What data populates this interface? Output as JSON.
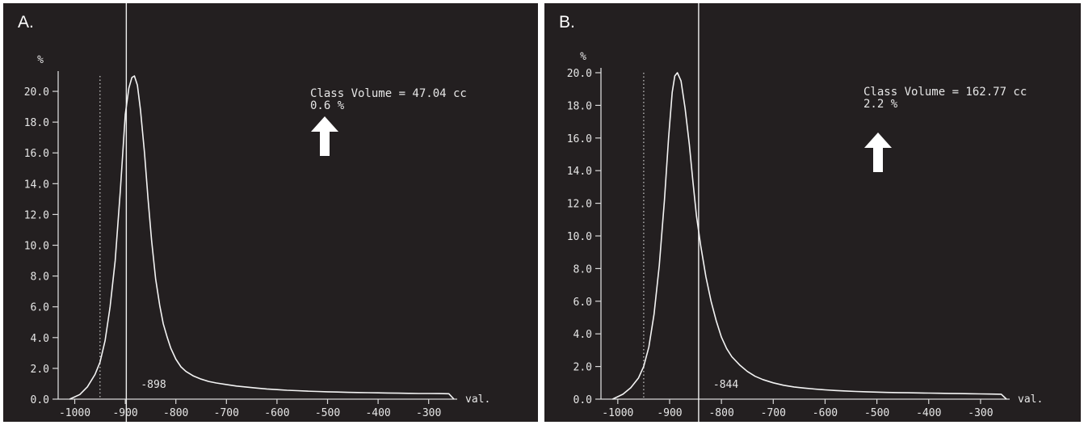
{
  "chart_data": [
    {
      "type": "line",
      "panel_label": "A.",
      "ylabel": "%",
      "xlabel": "val.",
      "xlim": [
        -1020,
        -250
      ],
      "ylim": [
        0,
        21
      ],
      "x_ticks": [
        -1000,
        -900,
        -800,
        -700,
        -600,
        -500,
        -400,
        -300
      ],
      "x_tick_labels": [
        "-1000",
        "-900",
        "-800",
        "-700",
        "-600",
        "-500",
        "-400",
        "-300"
      ],
      "y_ticks": [
        0,
        2,
        4,
        6,
        8,
        10,
        12,
        14,
        16,
        18,
        20
      ],
      "y_tick_labels": [
        "0.0",
        "2.0",
        "4.0",
        "6.0",
        "8.0",
        "10.0",
        "12.0",
        "14.0",
        "16.0",
        "18.0",
        "20.0"
      ],
      "threshold_line": -950,
      "cursor_line": -898,
      "cursor_label": "-898",
      "annotation": {
        "line1": "Class Volume = 47.04 cc",
        "line2": "0.6 %",
        "arrow": "up-arrow"
      },
      "series": [
        {
          "x": [
            -1010,
            -990,
            -975,
            -960,
            -950,
            -940,
            -930,
            -920,
            -910,
            -900,
            -893,
            -887,
            -882,
            -876,
            -870,
            -862,
            -855,
            -848,
            -840,
            -832,
            -825,
            -817,
            -810,
            -800,
            -790,
            -780,
            -765,
            -750,
            -735,
            -720,
            -700,
            -680,
            -660,
            -640,
            -620,
            -600,
            -580,
            -560,
            -540,
            -520,
            -500,
            -480,
            -460,
            -440,
            -420,
            -400,
            -380,
            -360,
            -340,
            -320,
            -300,
            -280,
            -260,
            -250
          ],
          "y": [
            0.0,
            0.3,
            0.8,
            1.6,
            2.4,
            3.8,
            6.0,
            9.0,
            13.5,
            18.5,
            20.2,
            20.9,
            21.0,
            20.4,
            18.8,
            16.0,
            13.0,
            10.3,
            7.8,
            6.1,
            4.9,
            4.0,
            3.3,
            2.6,
            2.1,
            1.8,
            1.5,
            1.3,
            1.15,
            1.05,
            0.95,
            0.85,
            0.78,
            0.72,
            0.66,
            0.62,
            0.58,
            0.55,
            0.52,
            0.5,
            0.48,
            0.46,
            0.44,
            0.43,
            0.42,
            0.41,
            0.4,
            0.39,
            0.38,
            0.37,
            0.37,
            0.36,
            0.35,
            0.0
          ]
        }
      ]
    },
    {
      "type": "line",
      "panel_label": "B.",
      "ylabel": "%",
      "xlabel": "val.",
      "xlim": [
        -1020,
        -250
      ],
      "ylim": [
        0,
        20
      ],
      "x_ticks": [
        -1000,
        -900,
        -800,
        -700,
        -600,
        -500,
        -400,
        -300
      ],
      "x_tick_labels": [
        "-1000",
        "-900",
        "-800",
        "-700",
        "-600",
        "-500",
        "-400",
        "-300"
      ],
      "y_ticks": [
        0,
        2,
        4,
        6,
        8,
        10,
        12,
        14,
        16,
        18,
        20
      ],
      "y_tick_labels": [
        "0.0",
        "2.0",
        "4.0",
        "6.0",
        "8.0",
        "10.0",
        "12.0",
        "14.0",
        "16.0",
        "18.0",
        "20.0"
      ],
      "threshold_line": -950,
      "cursor_line": -844,
      "cursor_label": "-844",
      "annotation": {
        "line1": "Class Volume = 162.77 cc",
        "line2": "2.2 %",
        "arrow": "up-arrow"
      },
      "series": [
        {
          "x": [
            -1010,
            -990,
            -975,
            -960,
            -950,
            -940,
            -930,
            -920,
            -910,
            -902,
            -895,
            -890,
            -885,
            -878,
            -870,
            -862,
            -855,
            -848,
            -840,
            -830,
            -820,
            -810,
            -800,
            -790,
            -780,
            -765,
            -750,
            -735,
            -720,
            -700,
            -680,
            -660,
            -640,
            -620,
            -600,
            -580,
            -560,
            -540,
            -520,
            -500,
            -480,
            -460,
            -440,
            -420,
            -400,
            -380,
            -360,
            -340,
            -320,
            -300,
            -280,
            -260,
            -250
          ],
          "y": [
            0.0,
            0.3,
            0.7,
            1.3,
            2.0,
            3.2,
            5.2,
            8.2,
            12.2,
            16.0,
            18.8,
            19.8,
            20.0,
            19.5,
            17.8,
            15.6,
            13.3,
            11.2,
            9.4,
            7.5,
            6.0,
            4.8,
            3.8,
            3.1,
            2.6,
            2.1,
            1.7,
            1.4,
            1.2,
            1.0,
            0.85,
            0.75,
            0.68,
            0.62,
            0.57,
            0.53,
            0.5,
            0.47,
            0.45,
            0.43,
            0.41,
            0.4,
            0.39,
            0.38,
            0.37,
            0.36,
            0.35,
            0.34,
            0.33,
            0.32,
            0.31,
            0.3,
            0.0
          ]
        }
      ]
    }
  ]
}
